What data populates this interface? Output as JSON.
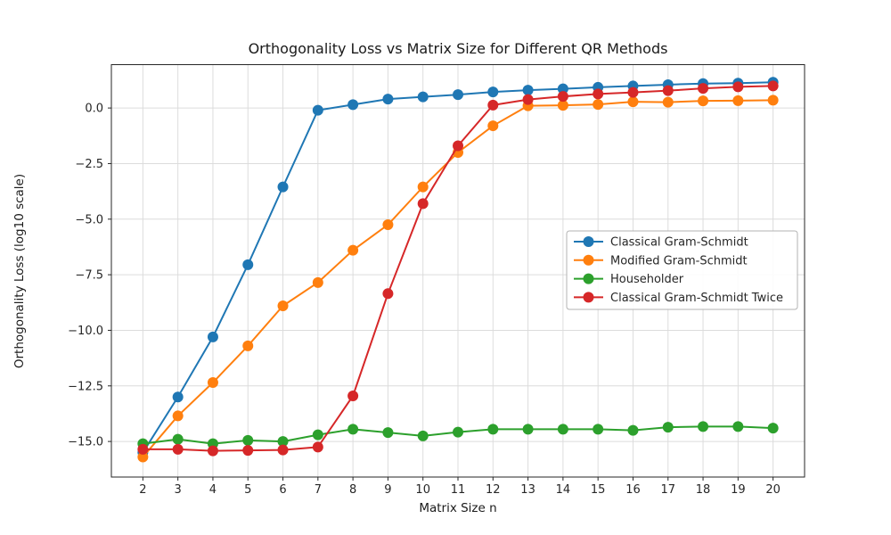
{
  "chart_data": {
    "type": "line",
    "title": "Orthogonality Loss vs Matrix Size for Different QR Methods",
    "xlabel": "Matrix Size n",
    "ylabel": "Orthogonality Loss (log10 scale)",
    "x": [
      2,
      3,
      4,
      5,
      6,
      7,
      8,
      9,
      10,
      11,
      12,
      13,
      14,
      15,
      16,
      17,
      18,
      19,
      20
    ],
    "series": [
      {
        "name": "Classical Gram-Schmidt",
        "color": "#1f77b4",
        "values": [
          -15.5,
          -13.0,
          -10.3,
          -7.05,
          -3.55,
          -0.1,
          0.15,
          0.4,
          0.5,
          0.6,
          0.72,
          0.8,
          0.86,
          0.93,
          0.99,
          1.05,
          1.1,
          1.12,
          1.16
        ]
      },
      {
        "name": "Modified Gram-Schmidt",
        "color": "#ff7f0e",
        "values": [
          -15.7,
          -13.85,
          -12.35,
          -10.7,
          -8.9,
          -7.85,
          -6.4,
          -5.25,
          -3.55,
          -2.0,
          -0.8,
          0.1,
          0.12,
          0.16,
          0.28,
          0.26,
          0.32,
          0.33,
          0.35
        ]
      },
      {
        "name": "Householder",
        "color": "#2ca02c",
        "values": [
          -15.1,
          -14.9,
          -15.1,
          -14.95,
          -15.0,
          -14.7,
          -14.45,
          -14.6,
          -14.75,
          -14.58,
          -14.45,
          -14.45,
          -14.45,
          -14.45,
          -14.5,
          -14.36,
          -14.33,
          -14.33,
          -14.4
        ]
      },
      {
        "name": "Classical Gram-Schmidt Twice",
        "color": "#d62728",
        "values": [
          -15.35,
          -15.35,
          -15.42,
          -15.4,
          -15.38,
          -15.25,
          -12.95,
          -8.35,
          -4.3,
          -1.7,
          0.13,
          0.38,
          0.52,
          0.63,
          0.7,
          0.78,
          0.88,
          0.95,
          0.99
        ]
      }
    ],
    "xticks": [
      2,
      3,
      4,
      5,
      6,
      7,
      8,
      9,
      10,
      11,
      12,
      13,
      14,
      15,
      16,
      17,
      18,
      19,
      20
    ],
    "yticks": [
      0.0,
      -2.5,
      -5.0,
      -7.5,
      -10.0,
      -12.5,
      -15.0
    ],
    "xlim": [
      1.1,
      20.9
    ],
    "ylim": [
      -16.6,
      1.95
    ],
    "grid": true,
    "legend_position": "center right",
    "marker": "o",
    "colors": {
      "grid": "#dcdcdc",
      "spine": "#262626",
      "legend_border": "#b3b3b3",
      "legend_background": "#ffffff"
    }
  }
}
